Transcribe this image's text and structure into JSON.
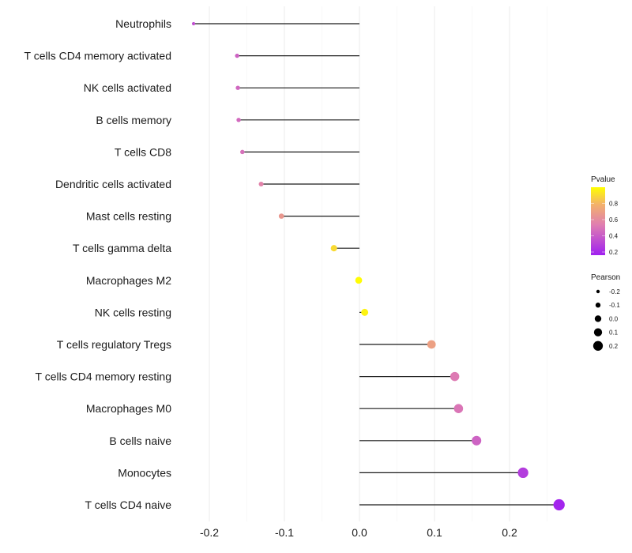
{
  "chart_data": {
    "type": "lollipop",
    "title": "",
    "xlabel": "",
    "ylabel": "",
    "xlim": [
      -0.235,
      0.285
    ],
    "x_ticks": [
      -0.2,
      -0.1,
      0.0,
      0.1,
      0.2
    ],
    "x_tick_labels": [
      "-0.2",
      "-0.1",
      "0.0",
      "0.1",
      "0.2"
    ],
    "grid": true,
    "categories": [
      "Neutrophils",
      "T cells CD4 memory activated",
      "NK cells activated",
      "B cells memory",
      "T cells CD8",
      "Dendritic cells activated",
      "Mast cells resting",
      "T cells gamma delta",
      "Macrophages M2",
      "NK cells resting",
      "T cells regulatory  Tregs ",
      "T cells CD4 memory resting",
      "Macrophages M0",
      "B cells naive",
      "Monocytes",
      "T cells CD4 naive"
    ],
    "values": [
      -0.221,
      -0.163,
      -0.162,
      -0.161,
      -0.156,
      -0.131,
      -0.104,
      -0.034,
      -0.001,
      0.007,
      0.096,
      0.127,
      0.132,
      0.156,
      0.218,
      0.266
    ],
    "pvalues": [
      0.3,
      0.38,
      0.4,
      0.41,
      0.44,
      0.52,
      0.62,
      0.88,
      0.99,
      0.96,
      0.66,
      0.48,
      0.46,
      0.38,
      0.22,
      0.12
    ],
    "legend": {
      "color": {
        "title": "Pvalue",
        "ticks": [
          0.2,
          0.4,
          0.6,
          0.8
        ],
        "tick_labels": [
          "0.2",
          "0.4",
          "0.6",
          "0.8"
        ],
        "range": [
          0.1,
          1.0
        ],
        "low_color": "#a020f0",
        "mid_color": "#e27fb0",
        "high_color": "#ffff00"
      },
      "size": {
        "title": "Pearson",
        "values": [
          -0.2,
          -0.1,
          0.0,
          0.1,
          0.2
        ],
        "labels": [
          "-0.2",
          "-0.1",
          "0.0",
          "0.1",
          "0.2"
        ]
      },
      "position": "right"
    }
  }
}
